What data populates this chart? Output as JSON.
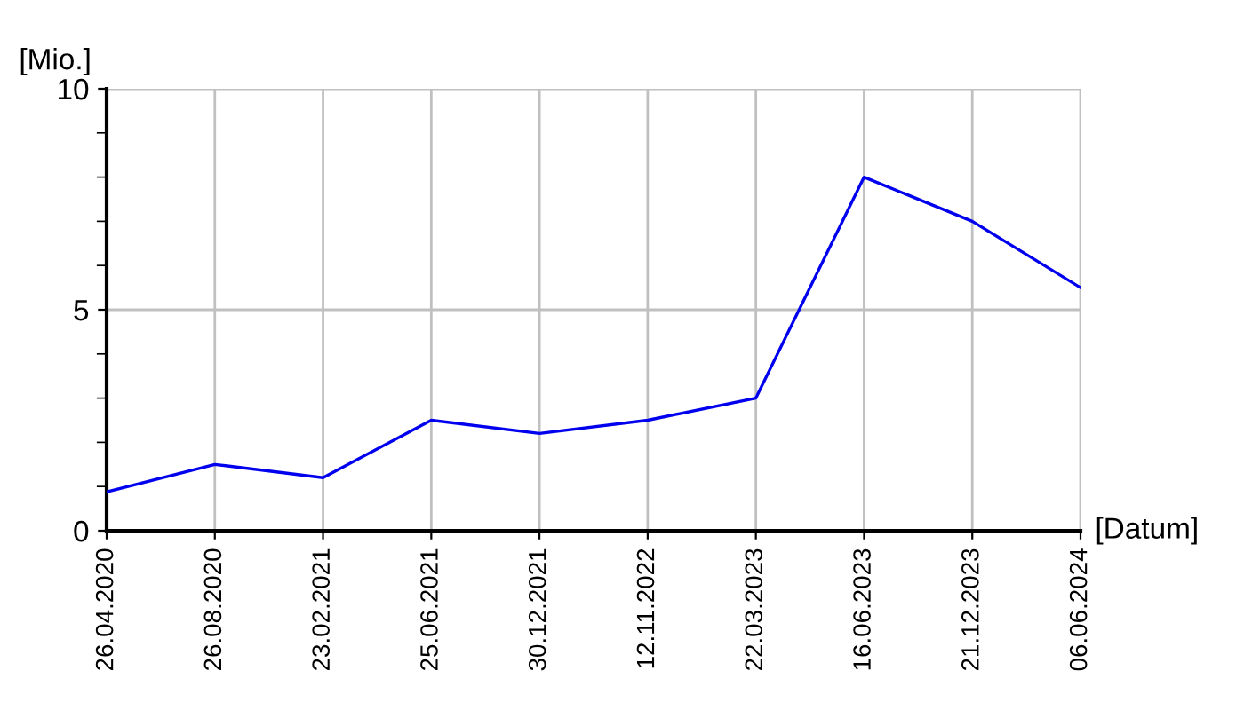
{
  "chart_data": {
    "type": "line",
    "ylabel": "[Mio.]",
    "xlabel": "[Datum]",
    "categories": [
      "26.04.2020",
      "26.08.2020",
      "23.02.2021",
      "25.06.2021",
      "30.12.2021",
      "12.11.2022",
      "22.03.2023",
      "16.06.2023",
      "21.12.2023",
      "06.06.2024"
    ],
    "series": [
      {
        "color": "#0000ee",
        "values": [
          0.88,
          1.5,
          1.2,
          2.5,
          2.2,
          2.5,
          3.0,
          8.0,
          7.0,
          5.5
        ]
      }
    ],
    "ylim": [
      0,
      10
    ],
    "yticks": [
      0,
      5,
      10
    ],
    "grid": true,
    "marker": "none",
    "line_style": "solid",
    "legend": false
  }
}
